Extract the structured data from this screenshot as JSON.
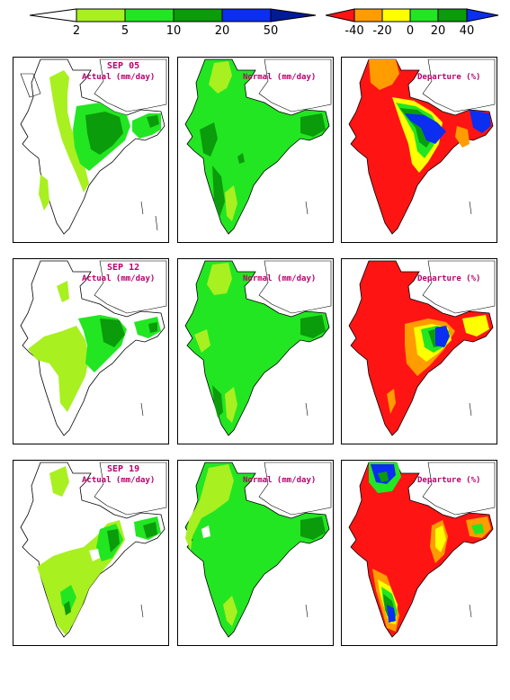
{
  "colorbars": {
    "actual_normal": {
      "ticks": [
        "2",
        "5",
        "10",
        "20",
        "50"
      ],
      "colors": [
        "#ffffff",
        "#a8f020",
        "#22e622",
        "#0a9c0a",
        "#0b2ef0",
        "#001a9a"
      ]
    },
    "departure": {
      "ticks": [
        "-40",
        "-20",
        "0",
        "20",
        "40"
      ],
      "colors": [
        "#ff1414",
        "#ff9c00",
        "#ffff00",
        "#22e622",
        "#0a9c0a",
        "#0b2ef0"
      ]
    }
  },
  "rows": [
    {
      "date": "SEP 05",
      "actual_label": "Actual (mm/day)",
      "normal_label": "Normal (mm/day)",
      "departure_label": "Departure (%)"
    },
    {
      "date": "SEP 12",
      "actual_label": "Actual (mm/day)",
      "normal_label": "Normal (mm/day)",
      "departure_label": "Departure (%)"
    },
    {
      "date": "SEP 19",
      "actual_label": "Actual (mm/day)",
      "normal_label": "Normal (mm/day)",
      "departure_label": "Departure (%)"
    }
  ]
}
